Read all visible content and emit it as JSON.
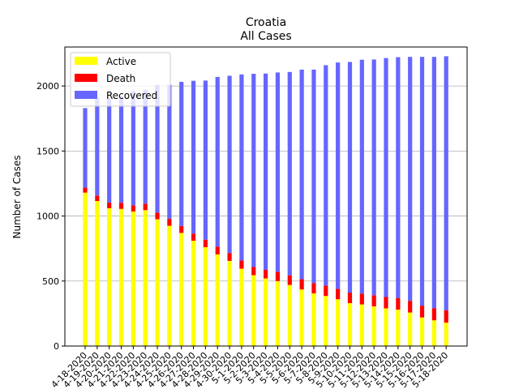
{
  "chart_data": {
    "type": "bar",
    "stacked": true,
    "title": "Croatia",
    "subtitle": "All Cases",
    "xlabel": "",
    "ylabel": "Number of Cases",
    "ylim": [
      0,
      2300
    ],
    "yticks": [
      0,
      500,
      1000,
      1500,
      2000
    ],
    "grid": "horizontal",
    "legend_position": "top-left",
    "categories": [
      "4-18-2020",
      "4-19-2020",
      "4-20-2020",
      "4-21-2020",
      "4-22-2020",
      "4-23-2020",
      "4-24-2020",
      "4-25-2020",
      "4-26-2020",
      "4-27-2020",
      "4-28-2020",
      "4-29-2020",
      "4-30-2020",
      "5-1-2020",
      "5-2-2020",
      "5-3-2020",
      "5-4-2020",
      "5-5-2020",
      "5-6-2020",
      "5-7-2020",
      "5-8-2020",
      "5-9-2020",
      "5-10-2020",
      "5-11-2020",
      "5-12-2020",
      "5-13-2020",
      "5-14-2020",
      "5-15-2020",
      "5-16-2020",
      "5-17-2020",
      "5-18-2020"
    ],
    "series": [
      {
        "name": "Active",
        "color": "#ffff00",
        "values": [
          1180,
          1115,
          1060,
          1055,
          1035,
          1045,
          975,
          925,
          870,
          810,
          760,
          705,
          655,
          595,
          545,
          520,
          500,
          470,
          435,
          405,
          385,
          360,
          330,
          320,
          305,
          290,
          280,
          258,
          220,
          198,
          180
        ]
      },
      {
        "name": "Death",
        "color": "#ff0000",
        "values": [
          39,
          43,
          44,
          47,
          48,
          50,
          51,
          53,
          54,
          55,
          58,
          59,
          61,
          63,
          63,
          66,
          72,
          74,
          79,
          79,
          79,
          80,
          81,
          83,
          86,
          87,
          90,
          90,
          91,
          94,
          95
        ]
      },
      {
        "name": "Recovered",
        "color": "#6666ff",
        "values": [
          611,
          749,
          800,
          818,
          878,
          877,
          982,
          1031,
          1108,
          1175,
          1224,
          1306,
          1363,
          1431,
          1486,
          1510,
          1532,
          1564,
          1612,
          1642,
          1696,
          1741,
          1774,
          1799,
          1813,
          1838,
          1852,
          1876,
          1913,
          1932,
          1954
        ]
      }
    ]
  }
}
